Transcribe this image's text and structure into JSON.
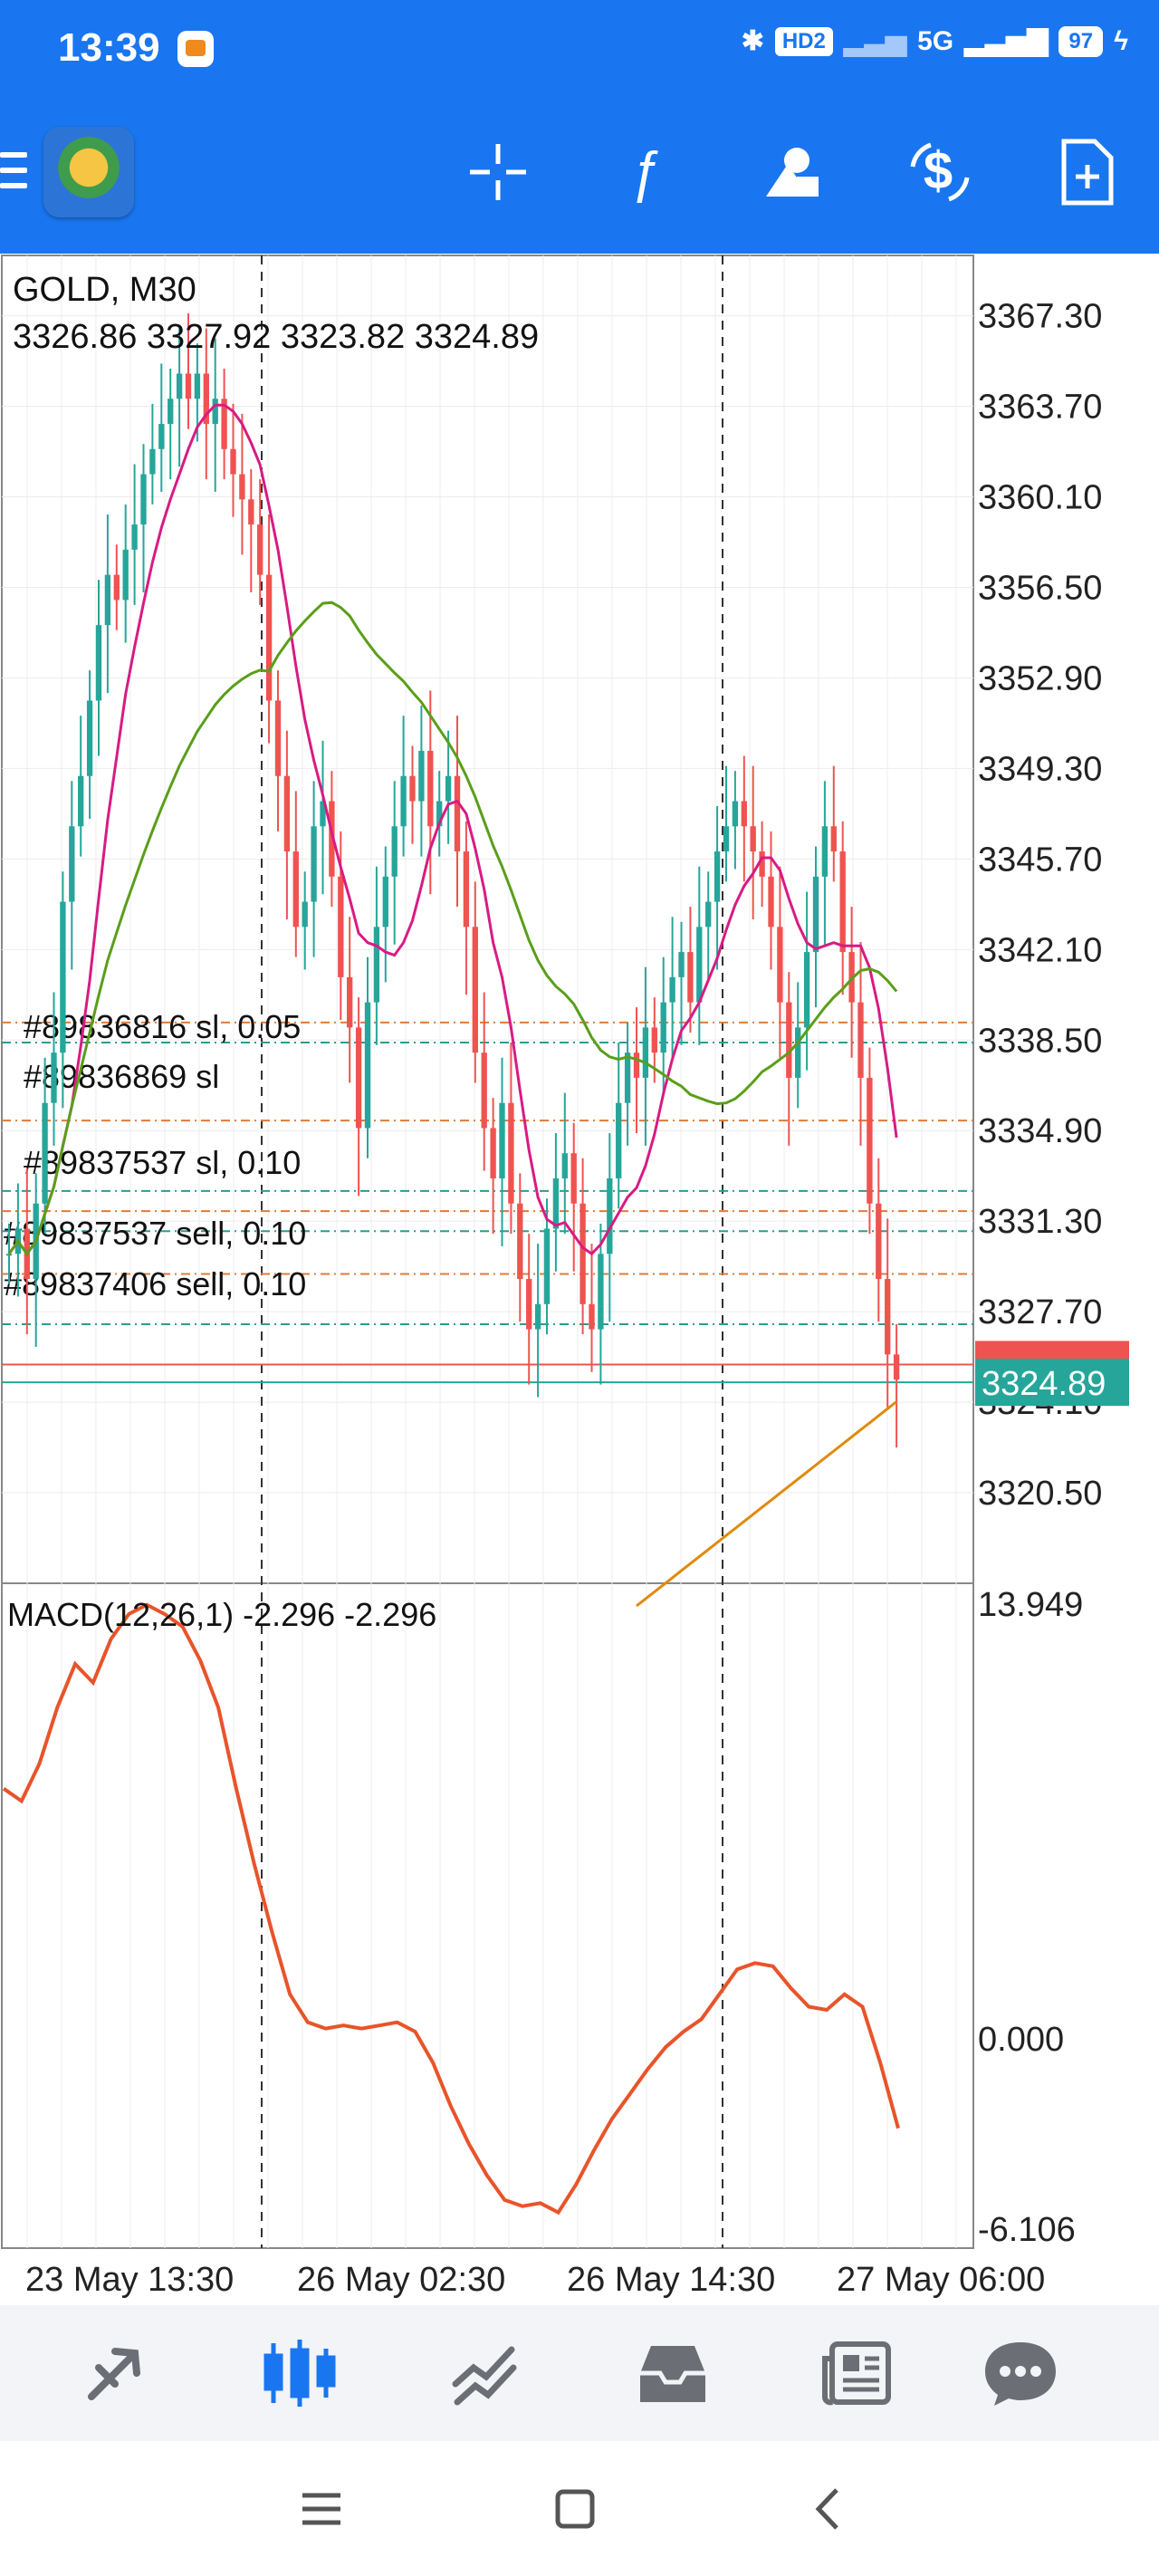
{
  "status_bar": {
    "time": "13:39",
    "network_badge": "HD2",
    "signal_label": "5G",
    "battery": "97"
  },
  "toolbar": {
    "icons": [
      "menu-icon",
      "app-logo",
      "crosshair-icon",
      "function-icon",
      "objects-icon",
      "trade-icon",
      "new-window-icon"
    ]
  },
  "chart": {
    "symbol_timeframe": "GOLD, M30",
    "ohlc": "3326.86 3327.92 3323.82 3324.89",
    "current_price": "3324.89",
    "indicator_label": "MACD(12,26,1) -2.296 -2.296",
    "colors": {
      "bull": "#26a69a",
      "bear": "#ef5350",
      "ma_fast": "#d81b84",
      "ma_mid": "#5a9e1a",
      "ma_slow": "#e08a0c",
      "macd": "#e8542a"
    }
  },
  "chart_data": {
    "type": "candlestick",
    "price_axis": {
      "labels": [
        "3367.30",
        "3363.70",
        "3360.10",
        "3356.50",
        "3352.90",
        "3349.30",
        "3345.70",
        "3342.10",
        "3338.50",
        "3334.90",
        "3331.30",
        "3327.70",
        "3324.10",
        "3320.50"
      ],
      "range": [
        3316.9,
        3369.7
      ]
    },
    "macd_axis": {
      "labels": [
        "13.949",
        "0.000",
        "-6.106"
      ],
      "range": [
        -6.106,
        13.949
      ]
    },
    "time_labels": [
      "23 May 13:30",
      "26 May 02:30",
      "26 May 14:30",
      "27 May 06:00"
    ],
    "orders": [
      {
        "label": "#89836816 sl, 0.05"
      },
      {
        "label": "#89836869 sl"
      },
      {
        "label": "#89837537 sl, 0.10"
      },
      {
        "label": "#89837537 sell, 0.10"
      },
      {
        "label": "#89837406 sell, 0.10"
      }
    ]
  },
  "bottom_nav": {
    "items": [
      "quotes-icon",
      "chart-icon",
      "trade-icon",
      "history-icon",
      "news-icon",
      "chat-icon"
    ]
  }
}
